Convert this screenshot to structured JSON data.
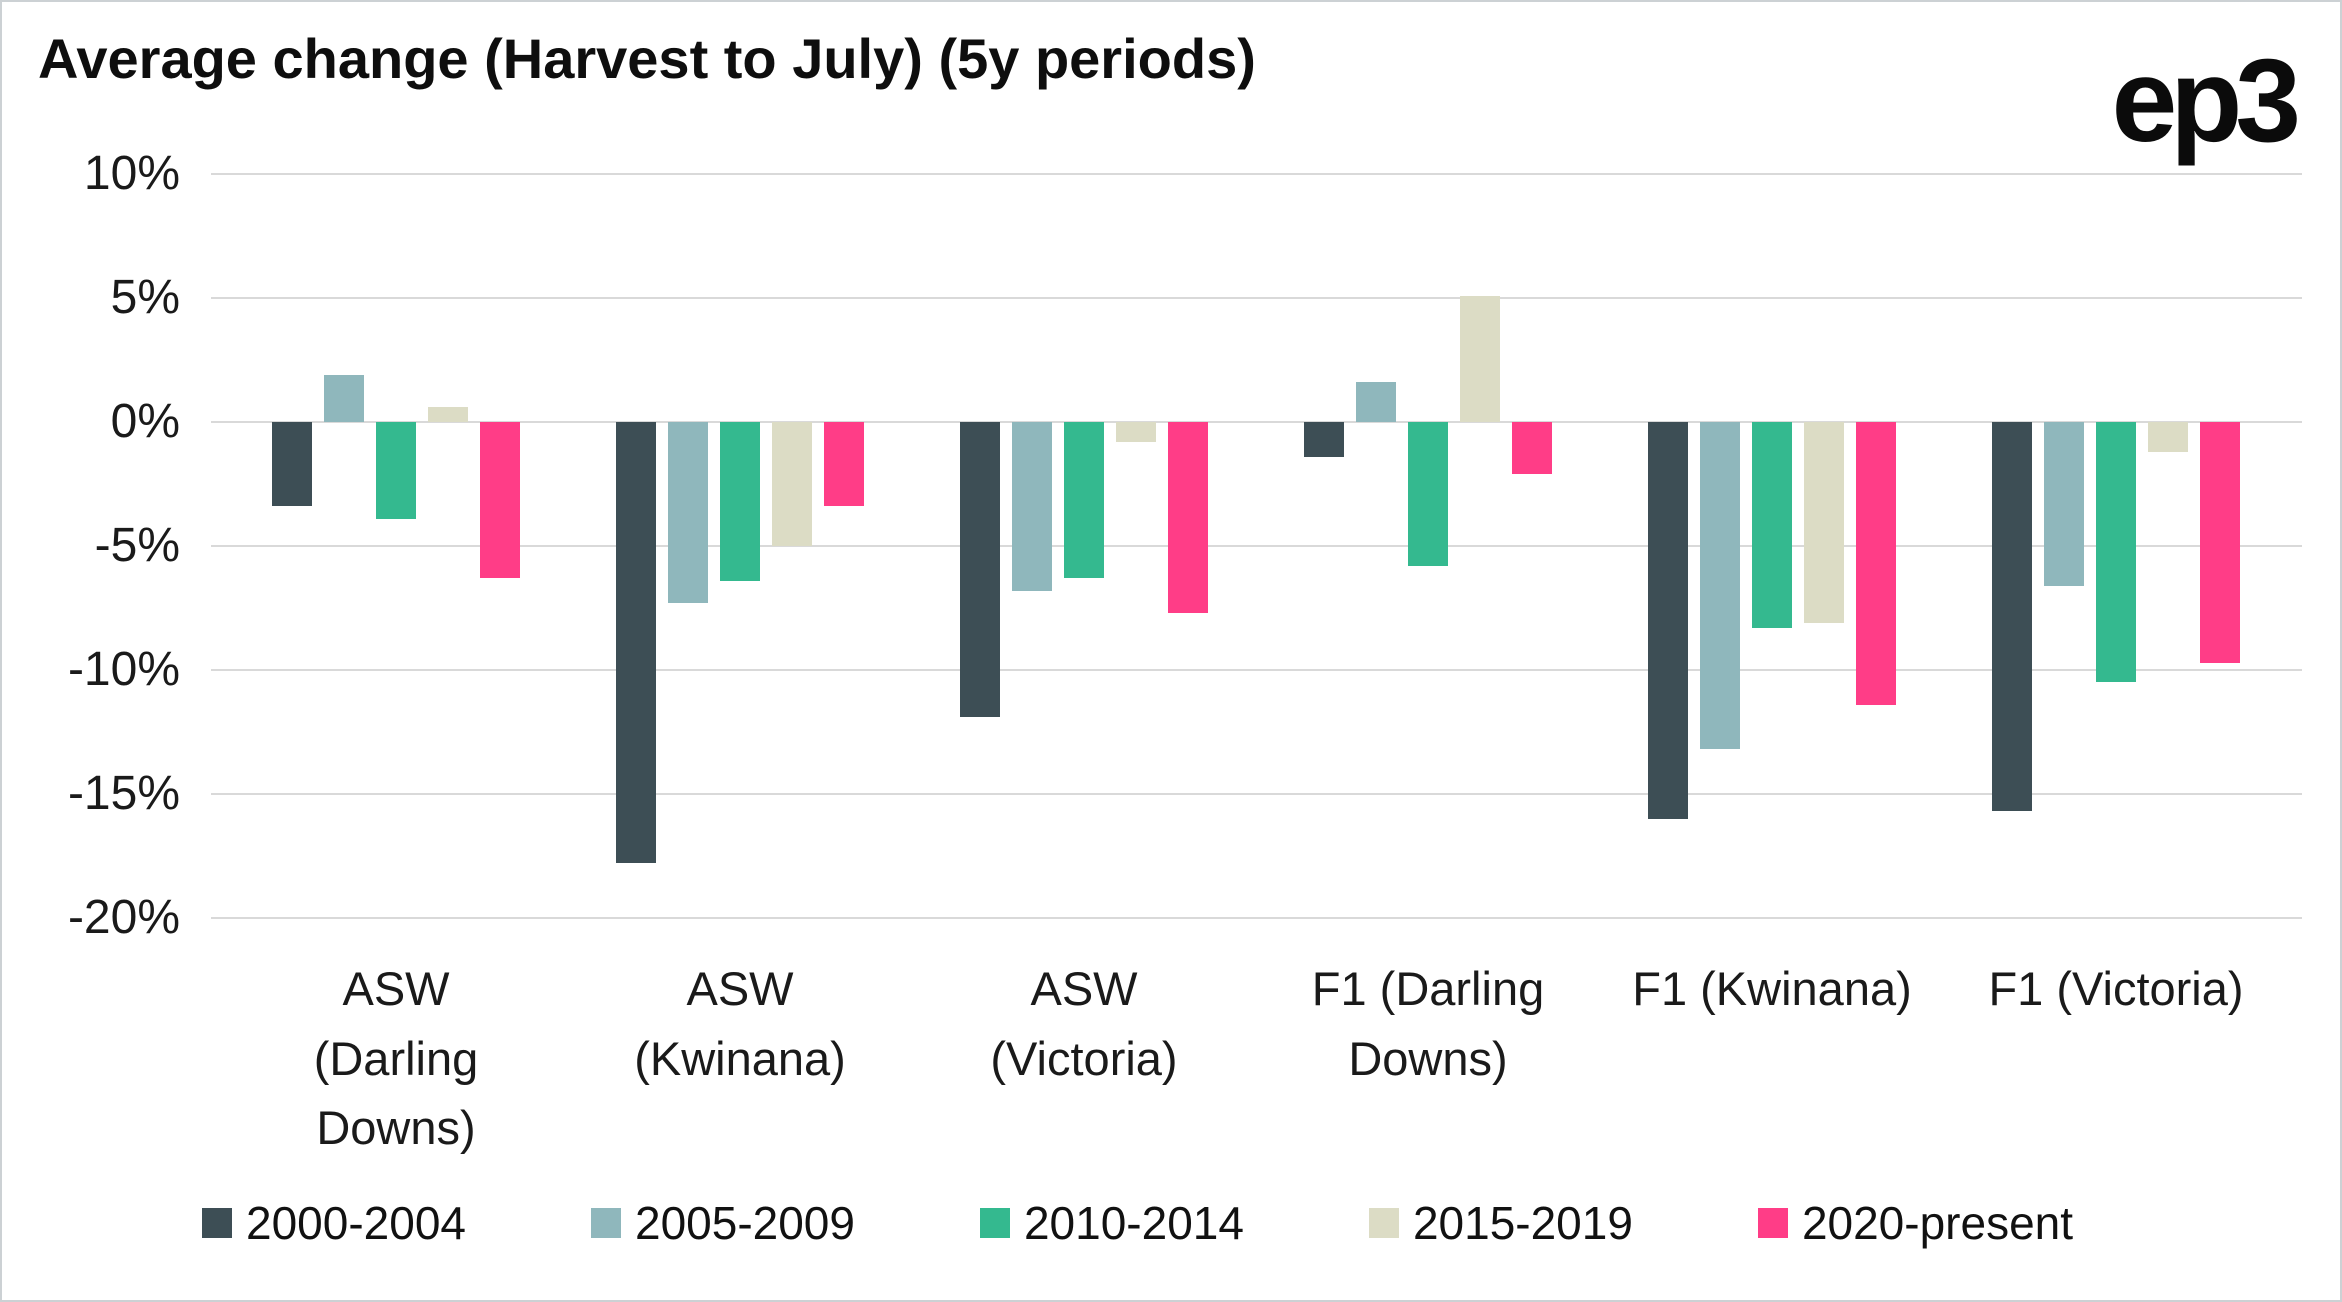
{
  "header": {
    "title": "Average change (Harvest to July) (5y periods)",
    "logo": "ep3"
  },
  "chart_data": {
    "type": "bar",
    "title": "Average change (Harvest to July) (5y periods)",
    "xlabel": "",
    "ylabel": "",
    "categories": [
      "ASW (Darling Downs)",
      "ASW (Kwinana)",
      "ASW (Victoria)",
      "F1 (Darling Downs)",
      "F1 (Kwinana)",
      "F1 (Victoria)"
    ],
    "category_lines": [
      [
        "ASW",
        "(Darling",
        "Downs)"
      ],
      [
        "ASW",
        "(Kwinana)"
      ],
      [
        "ASW",
        "(Victoria)"
      ],
      [
        "F1 (Darling",
        "Downs)"
      ],
      [
        "F1 (Kwinana)"
      ],
      [
        "F1 (Victoria)"
      ]
    ],
    "series": [
      {
        "name": "2000-2004",
        "color": "#3d4e55",
        "values": [
          -3.4,
          -17.8,
          -11.9,
          -1.4,
          -16.0,
          -15.7
        ]
      },
      {
        "name": "2005-2009",
        "color": "#8fb7bc",
        "values": [
          1.9,
          -7.3,
          -6.8,
          1.6,
          -13.2,
          -6.6
        ]
      },
      {
        "name": "2010-2014",
        "color": "#34b98f",
        "values": [
          -3.9,
          -6.4,
          -6.3,
          -5.8,
          -8.3,
          -10.5
        ]
      },
      {
        "name": "2015-2019",
        "color": "#dcdcc5",
        "values": [
          0.6,
          -5.0,
          -0.8,
          5.1,
          -8.1,
          -1.2
        ]
      },
      {
        "name": "2020-present",
        "color": "#ff3d87",
        "values": [
          -6.3,
          -3.4,
          -7.7,
          -2.1,
          -11.4,
          -9.7
        ]
      }
    ],
    "ylim": [
      -20,
      10
    ],
    "yticks": [
      10,
      5,
      0,
      -5,
      -10,
      -15,
      -20
    ],
    "ytick_labels": [
      "10%",
      "5%",
      "0%",
      "-5%",
      "-10%",
      "-15%",
      "-20%"
    ],
    "grid": true,
    "legend_position": "bottom"
  }
}
